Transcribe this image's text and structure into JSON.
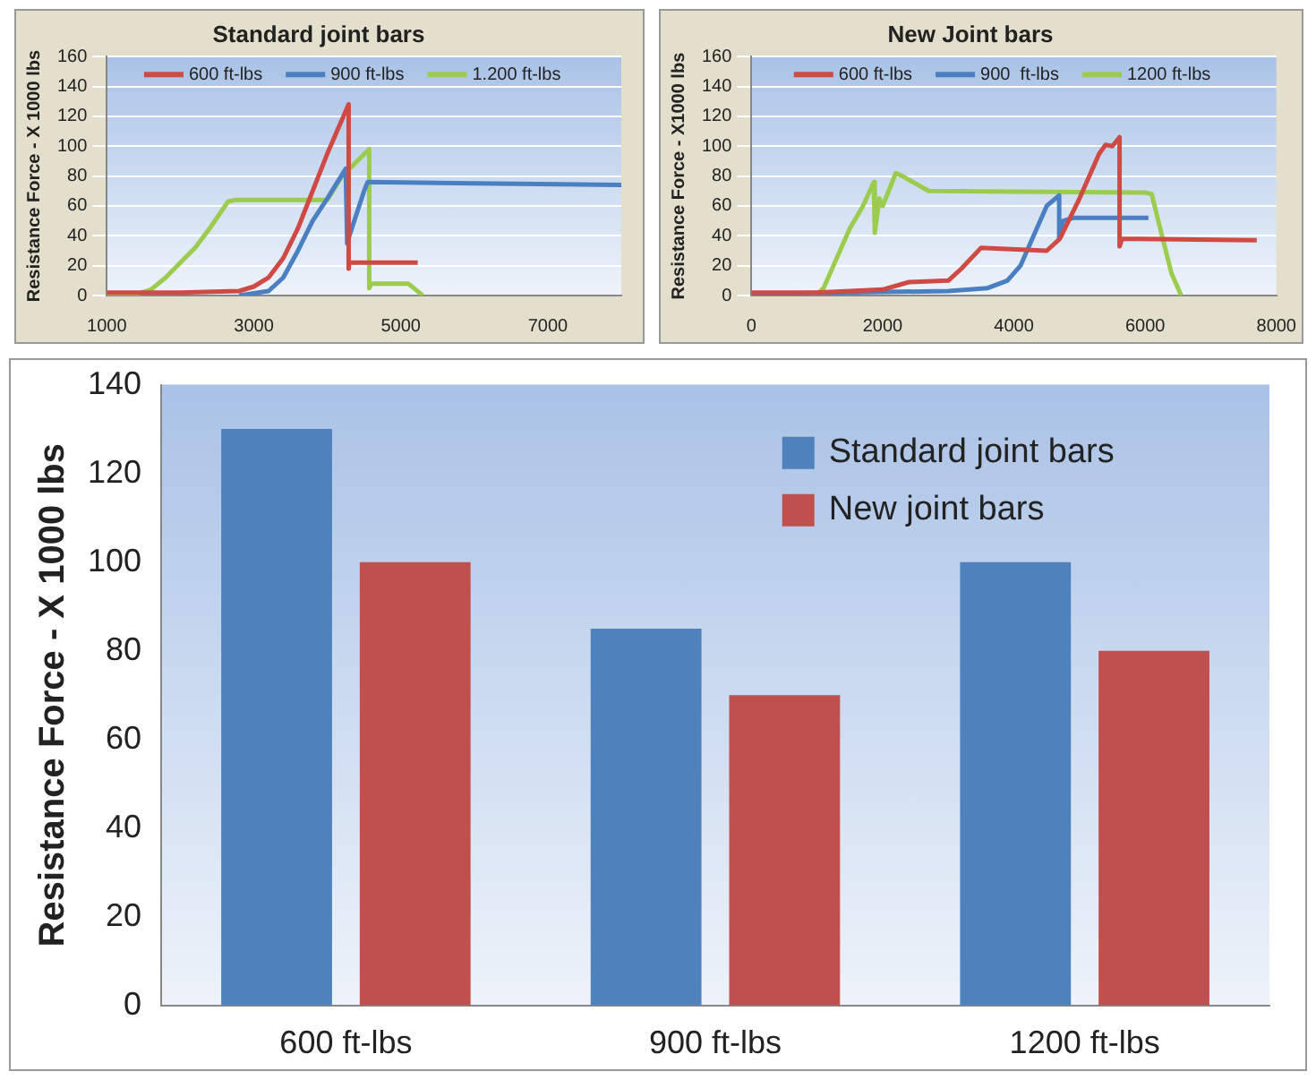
{
  "chart_data": [
    {
      "type": "line",
      "title": "Standard joint bars",
      "ylabel": "Resistance Force - X 1000 lbs",
      "xlim": [
        1000,
        8000
      ],
      "xticks": [
        1000,
        3000,
        5000,
        7000
      ],
      "ylim": [
        0,
        160
      ],
      "yticks": [
        0,
        20,
        40,
        60,
        80,
        100,
        120,
        140,
        160
      ],
      "grid": "y",
      "legend": "top",
      "marker": "none",
      "line_style": "solid",
      "series": [
        {
          "name": "600 ft-lbs",
          "color": "#d04a45",
          "x": [
            1000,
            2000,
            2800,
            3000,
            3200,
            3400,
            3600,
            3800,
            4000,
            4290,
            4290,
            4300,
            5230
          ],
          "values": [
            2,
            2,
            3,
            6,
            12,
            25,
            45,
            70,
            95,
            128,
            18,
            22,
            22
          ]
        },
        {
          "name": "900 ft-lbs",
          "color": "#4a7fc1",
          "x": [
            2800,
            3200,
            3400,
            3600,
            3800,
            4000,
            4250,
            4270,
            4300,
            4500,
            4550,
            8000
          ],
          "values": [
            0,
            3,
            12,
            30,
            50,
            65,
            85,
            35,
            40,
            70,
            76,
            74
          ]
        },
        {
          "name": "1.200 ft-lbs",
          "color": "#9bcc4e",
          "x": [
            1000,
            1400,
            1600,
            1800,
            2000,
            2200,
            2400,
            2650,
            2750,
            4000,
            4200,
            4570,
            4570,
            4600,
            5100,
            5250,
            5300
          ],
          "values": [
            0,
            1,
            4,
            12,
            22,
            32,
            45,
            63,
            64,
            64,
            80,
            98,
            5,
            8,
            8,
            2,
            0
          ]
        }
      ]
    },
    {
      "type": "line",
      "title": "New Joint bars",
      "ylabel": "Resistance Force - X1000 lbs",
      "xlim": [
        0,
        8000
      ],
      "xticks": [
        0,
        2000,
        4000,
        6000,
        8000
      ],
      "ylim": [
        0,
        160
      ],
      "yticks": [
        0,
        20,
        40,
        60,
        80,
        100,
        120,
        140,
        160
      ],
      "grid": "y",
      "legend": "top",
      "marker": "none",
      "line_style": "solid",
      "series": [
        {
          "name": "600 ft-lbs",
          "color": "#d04a45",
          "x": [
            0,
            1000,
            2000,
            2400,
            3000,
            3200,
            3500,
            4500,
            4700,
            5000,
            5300,
            5400,
            5500,
            5610,
            5610,
            5650,
            7700
          ],
          "values": [
            2,
            2,
            4,
            9,
            10,
            18,
            32,
            30,
            38,
            65,
            95,
            101,
            100,
            106,
            33,
            38,
            37
          ]
        },
        {
          "name": "900  ft-lbs",
          "color": "#4a7fc1",
          "x": [
            0,
            3000,
            3600,
            3900,
            4100,
            4300,
            4500,
            4690,
            4690,
            4750,
            4900,
            6050
          ],
          "values": [
            1,
            3,
            5,
            10,
            20,
            40,
            60,
            67,
            38,
            50,
            52,
            52
          ]
        },
        {
          "name": "1200 ft-lbs",
          "color": "#9bcc4e",
          "x": [
            0,
            500,
            1000,
            1100,
            1300,
            1500,
            1700,
            1865,
            1880,
            1950,
            2000,
            2200,
            2300,
            2500,
            2700,
            6000,
            6100,
            6200,
            6400,
            6550
          ],
          "values": [
            0,
            0,
            1,
            5,
            25,
            45,
            60,
            76,
            42,
            65,
            60,
            82,
            80,
            75,
            70,
            69,
            68,
            50,
            15,
            0
          ]
        }
      ]
    },
    {
      "type": "bar",
      "ylabel": "Resistance Force - X 1000 lbs",
      "categories": [
        "600 ft-lbs",
        "900 ft-lbs",
        "1200 ft-lbs"
      ],
      "ylim": [
        0,
        140
      ],
      "yticks": [
        0,
        20,
        40,
        60,
        80,
        100,
        120,
        140
      ],
      "grid": false,
      "legend": "top right",
      "series": [
        {
          "name": "Standard joint bars",
          "color": "#4f81bd",
          "values": [
            130,
            85,
            100
          ]
        },
        {
          "name": "New joint bars",
          "color": "#c0504d",
          "values": [
            100,
            70,
            80
          ]
        }
      ]
    }
  ]
}
